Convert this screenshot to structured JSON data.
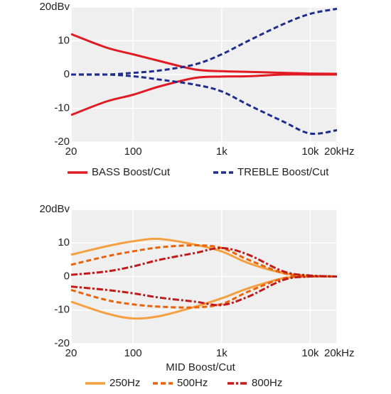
{
  "chart_data": [
    {
      "type": "line",
      "x_scale": "log",
      "grid": true,
      "x": [
        20,
        50,
        100,
        200,
        500,
        1000,
        2000,
        5000,
        10000,
        20000
      ],
      "xlim": [
        20,
        20000
      ],
      "xticks": [
        20,
        100,
        {
          "value": 1000,
          "label": "1k"
        },
        {
          "value": 10000,
          "label": "10k"
        },
        {
          "value": 20000,
          "label": "20kHz"
        }
      ],
      "ylim": [
        -20,
        20
      ],
      "yticks": [
        -20,
        -10,
        0,
        10,
        {
          "value": 20,
          "label": "20dBv"
        }
      ],
      "series": [
        {
          "name": "BASS Boost/Cut",
          "color": "#e01b24",
          "dash": "solid",
          "boost": [
            12,
            8,
            6,
            4,
            1.5,
            1,
            0.8,
            0.5,
            0.3,
            0.2
          ],
          "cut": [
            -12,
            -8,
            -6,
            -3.5,
            -1,
            -0.6,
            -0.5,
            0,
            0,
            0
          ]
        },
        {
          "name": "TREBLE Boost/Cut",
          "color": "#1f2e8c",
          "dash": "dashed",
          "boost": [
            0,
            0,
            0.5,
            1.2,
            3,
            6,
            10,
            15,
            18,
            19.5
          ],
          "cut": [
            0,
            0,
            -0.5,
            -1.5,
            -3,
            -5,
            -9,
            -14,
            -17.5,
            -16.5
          ]
        }
      ]
    },
    {
      "type": "line",
      "x_scale": "log",
      "grid": true,
      "xlabel": "MID Boost/Cut",
      "x": [
        20,
        50,
        100,
        200,
        500,
        1000,
        2000,
        5000,
        10000,
        20000
      ],
      "xlim": [
        20,
        20000
      ],
      "xticks": [
        20,
        100,
        {
          "value": 1000,
          "label": "1k"
        },
        {
          "value": 10000,
          "label": "10k"
        },
        {
          "value": 20000,
          "label": "20kHz"
        }
      ],
      "ylim": [
        -20,
        20
      ],
      "yticks": [
        -20,
        -10,
        0,
        10,
        {
          "value": 20,
          "label": "20dBv"
        }
      ],
      "series": [
        {
          "name": "250Hz",
          "color": "#f5a040",
          "dash": "solid",
          "boost": [
            6.5,
            9,
            10.5,
            11.2,
            9.5,
            7.5,
            4,
            1,
            0.2,
            0
          ],
          "cut": [
            -7.5,
            -11,
            -12.5,
            -11.8,
            -9,
            -6.5,
            -3.5,
            -0.5,
            0,
            0
          ]
        },
        {
          "name": "500Hz",
          "color": "#e8640a",
          "dash": "dashed",
          "boost": [
            3.5,
            6,
            7.5,
            8.7,
            9.3,
            8.5,
            5,
            1,
            0.2,
            0
          ],
          "cut": [
            -4,
            -7,
            -8.3,
            -9,
            -9.2,
            -8.2,
            -4.5,
            -0.5,
            0,
            0
          ]
        },
        {
          "name": "800Hz",
          "color": "#c01a1a",
          "dash": "dashdot",
          "boost": [
            0.5,
            1.5,
            3,
            5,
            7,
            8.5,
            6.5,
            1.5,
            0.3,
            0
          ],
          "cut": [
            -3,
            -4,
            -5,
            -6.3,
            -7.5,
            -8.5,
            -6,
            -1,
            0,
            0
          ]
        }
      ]
    }
  ]
}
